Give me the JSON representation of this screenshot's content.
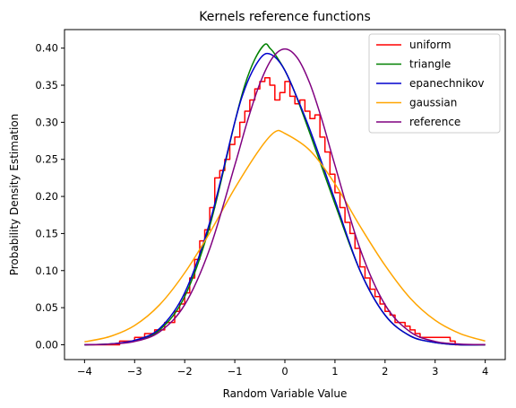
{
  "chart_data": {
    "type": "line",
    "title": "Kernels reference functions",
    "xlabel": "Random Variable Value",
    "ylabel": "Probability Density Estimation",
    "xlim": [
      -4.4,
      4.4
    ],
    "ylim": [
      -0.02,
      0.425
    ],
    "xticks": [
      -4,
      -3,
      -2,
      -1,
      0,
      1,
      2,
      3,
      4
    ],
    "xtick_labels": [
      "−4",
      "−3",
      "−2",
      "−1",
      "0",
      "1",
      "2",
      "3",
      "4"
    ],
    "yticks": [
      0.0,
      0.05,
      0.1,
      0.15,
      0.2,
      0.25,
      0.3,
      0.35,
      0.4
    ],
    "ytick_labels": [
      "0.00",
      "0.05",
      "0.10",
      "0.15",
      "0.20",
      "0.25",
      "0.30",
      "0.35",
      "0.40"
    ],
    "grid": false,
    "legend_position": "top-right",
    "series": [
      {
        "name": "uniform",
        "color": "#ff0000",
        "step": true,
        "x": [
          -4.0,
          -3.3,
          -3.0,
          -2.8,
          -2.6,
          -2.4,
          -2.2,
          -2.1,
          -2.0,
          -1.9,
          -1.8,
          -1.7,
          -1.6,
          -1.5,
          -1.4,
          -1.3,
          -1.2,
          -1.1,
          -1.0,
          -0.9,
          -0.8,
          -0.7,
          -0.6,
          -0.5,
          -0.4,
          -0.3,
          -0.2,
          -0.1,
          0.0,
          0.1,
          0.2,
          0.3,
          0.4,
          0.5,
          0.6,
          0.7,
          0.8,
          0.9,
          1.0,
          1.1,
          1.2,
          1.3,
          1.4,
          1.5,
          1.6,
          1.7,
          1.8,
          1.9,
          2.0,
          2.1,
          2.2,
          2.3,
          2.4,
          2.5,
          2.6,
          2.7,
          2.8,
          3.0,
          3.3,
          3.4,
          4.0
        ],
        "y": [
          0.0,
          0.005,
          0.01,
          0.015,
          0.02,
          0.03,
          0.045,
          0.055,
          0.07,
          0.09,
          0.115,
          0.14,
          0.155,
          0.185,
          0.225,
          0.235,
          0.25,
          0.27,
          0.28,
          0.3,
          0.315,
          0.33,
          0.345,
          0.355,
          0.36,
          0.35,
          0.33,
          0.34,
          0.355,
          0.335,
          0.325,
          0.33,
          0.315,
          0.305,
          0.31,
          0.28,
          0.26,
          0.23,
          0.205,
          0.185,
          0.165,
          0.15,
          0.13,
          0.105,
          0.09,
          0.075,
          0.065,
          0.055,
          0.045,
          0.04,
          0.03,
          0.03,
          0.025,
          0.02,
          0.015,
          0.01,
          0.01,
          0.01,
          0.005,
          0.0,
          0.0
        ]
      },
      {
        "name": "triangle",
        "color": "#008000",
        "x": [
          -4.0,
          -3.5,
          -3.0,
          -2.5,
          -2.0,
          -1.5,
          -1.0,
          -0.8,
          -0.6,
          -0.4,
          -0.3,
          -0.2,
          0.0,
          0.2,
          0.5,
          1.0,
          1.5,
          2.0,
          2.5,
          3.0,
          3.5,
          4.0
        ],
        "y": [
          0.0,
          0.001,
          0.005,
          0.02,
          0.065,
          0.16,
          0.3,
          0.35,
          0.385,
          0.405,
          0.4,
          0.392,
          0.37,
          0.34,
          0.285,
          0.19,
          0.1,
          0.04,
          0.012,
          0.003,
          0.0,
          0.0
        ]
      },
      {
        "name": "epanechnikov",
        "color": "#0000cd",
        "x": [
          -4.0,
          -3.5,
          -3.0,
          -2.5,
          -2.0,
          -1.5,
          -1.0,
          -0.8,
          -0.6,
          -0.4,
          -0.2,
          0.0,
          0.2,
          0.5,
          1.0,
          1.5,
          2.0,
          2.5,
          3.0,
          3.5,
          4.0
        ],
        "y": [
          0.0,
          0.001,
          0.006,
          0.022,
          0.07,
          0.165,
          0.3,
          0.345,
          0.375,
          0.392,
          0.388,
          0.37,
          0.34,
          0.29,
          0.195,
          0.1,
          0.04,
          0.012,
          0.003,
          0.0,
          0.0
        ]
      },
      {
        "name": "gaussian",
        "color": "#ffa500",
        "x": [
          -4.0,
          -3.5,
          -3.0,
          -2.5,
          -2.0,
          -1.5,
          -1.0,
          -0.5,
          -0.2,
          0.0,
          0.5,
          1.0,
          1.5,
          2.0,
          2.5,
          3.0,
          3.5,
          4.0
        ],
        "y": [
          0.004,
          0.011,
          0.026,
          0.054,
          0.097,
          0.151,
          0.211,
          0.264,
          0.287,
          0.285,
          0.262,
          0.217,
          0.16,
          0.107,
          0.063,
          0.033,
          0.015,
          0.005
        ]
      },
      {
        "name": "reference",
        "color": "#800080",
        "x": [
          -4.0,
          -3.5,
          -3.0,
          -2.5,
          -2.0,
          -1.5,
          -1.0,
          -0.75,
          -0.5,
          -0.25,
          0.0,
          0.25,
          0.5,
          0.75,
          1.0,
          1.5,
          2.0,
          2.5,
          3.0,
          3.5,
          4.0
        ],
        "y": [
          0.0001,
          0.0009,
          0.0044,
          0.0175,
          0.054,
          0.1295,
          0.242,
          0.3011,
          0.3521,
          0.3867,
          0.3989,
          0.3867,
          0.3521,
          0.3011,
          0.242,
          0.1295,
          0.054,
          0.0175,
          0.0044,
          0.0009,
          0.0001
        ]
      }
    ]
  }
}
